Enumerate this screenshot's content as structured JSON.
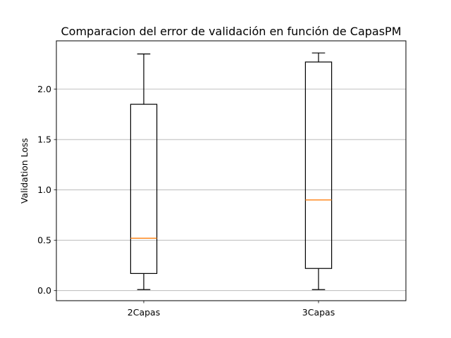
{
  "chart_data": {
    "type": "box",
    "title": "Comparacion del error de validación en función de CapasPM",
    "xlabel": "",
    "ylabel": "Validation Loss",
    "ylim": [
      -0.1,
      2.48
    ],
    "yticks": [
      0.0,
      0.5,
      1.0,
      1.5,
      2.0
    ],
    "ytick_labels": [
      "0.0",
      "0.5",
      "1.0",
      "1.5",
      "2.0"
    ],
    "grid": "y",
    "categories": [
      "2Capas",
      "3Capas"
    ],
    "boxes": [
      {
        "label": "2Capas",
        "whisker_low": 0.01,
        "q1": 0.17,
        "median": 0.52,
        "q3": 1.85,
        "whisker_high": 2.35
      },
      {
        "label": "3Capas",
        "whisker_low": 0.01,
        "q1": 0.22,
        "median": 0.9,
        "q3": 2.27,
        "whisker_high": 2.36
      }
    ],
    "colors": {
      "box": "#000000",
      "median": "#ff7f0e",
      "grid": "#b0b0b0"
    }
  }
}
